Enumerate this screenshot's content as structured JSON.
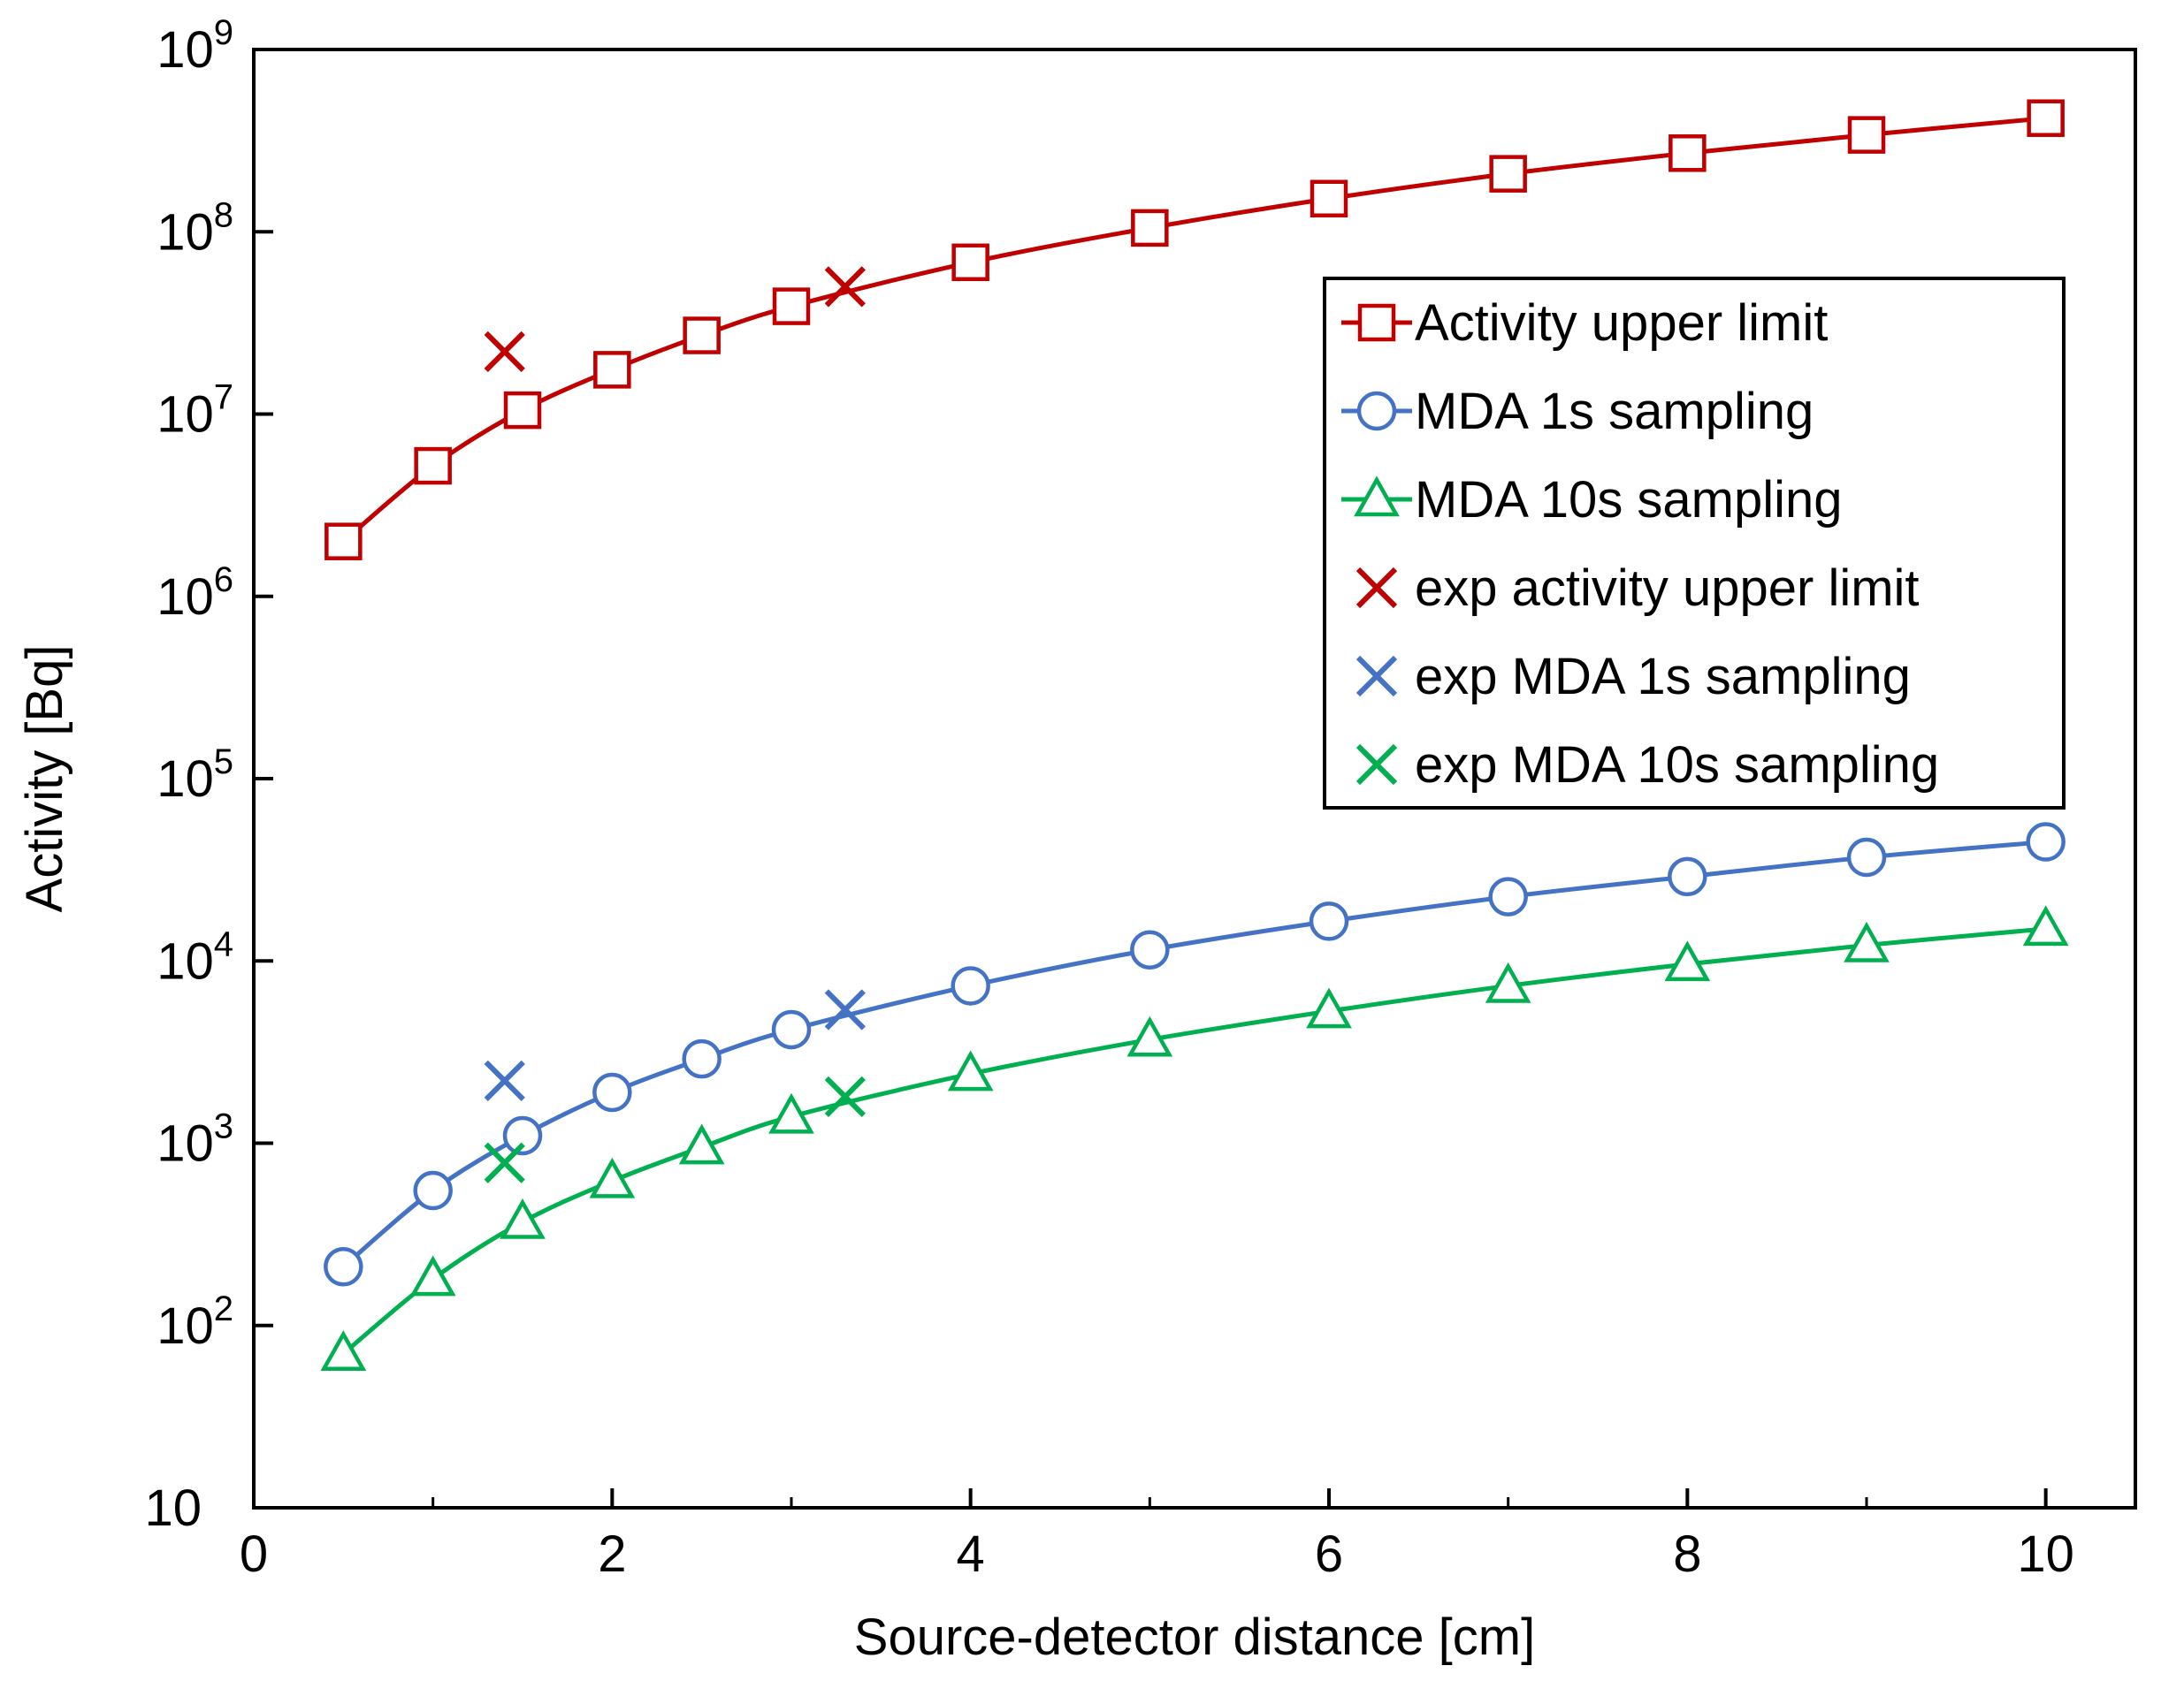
{
  "chart_data": {
    "type": "line",
    "title": "",
    "xlabel": "Source-detector distance [cm]",
    "ylabel": "Activity [Bq]",
    "xlim": [
      0,
      10.5
    ],
    "ylim": [
      10,
      1000000000
    ],
    "yscale": "log",
    "x_ticks": [
      0,
      2,
      4,
      6,
      8,
      10
    ],
    "x_tick_labels": [
      "0",
      "2",
      "4",
      "6",
      "8",
      "10"
    ],
    "y_ticks": [
      {
        "base": "10",
        "exp": "",
        "value": 10
      },
      {
        "base": "10",
        "exp": "2",
        "value": 100
      },
      {
        "base": "10",
        "exp": "3",
        "value": 1000
      },
      {
        "base": "10",
        "exp": "4",
        "value": 10000
      },
      {
        "base": "10",
        "exp": "5",
        "value": 100000
      },
      {
        "base": "10",
        "exp": "6",
        "value": 1000000
      },
      {
        "base": "10",
        "exp": "7",
        "value": 10000000
      },
      {
        "base": "10",
        "exp": "8",
        "value": 100000000
      },
      {
        "base": "10",
        "exp": "9",
        "value": 1000000000
      }
    ],
    "legend_position": "upper-right",
    "series": [
      {
        "name": "Activity upper limit",
        "kind": "line",
        "marker": "square",
        "color": "#C00000",
        "x": [
          0.5,
          1,
          1.5,
          2,
          2.5,
          3,
          4,
          5,
          6,
          7,
          8,
          9,
          10
        ],
        "y": [
          2000000,
          5200000,
          10500000,
          17500000,
          27000000,
          39000000,
          68000000,
          105000000,
          152000000,
          208000000,
          270000000,
          340000000,
          420000000
        ]
      },
      {
        "name": "MDA 1s sampling",
        "kind": "line",
        "marker": "circle",
        "color": "#4472C4",
        "x": [
          0.5,
          1,
          1.5,
          2,
          2.5,
          3,
          4,
          5,
          6,
          7,
          8,
          9,
          10
        ],
        "y": [
          210,
          550,
          1100,
          1900,
          2900,
          4200,
          7300,
          11500,
          16500,
          22500,
          29000,
          37000,
          45000
        ]
      },
      {
        "name": "MDA 10s sampling",
        "kind": "line",
        "marker": "triangle",
        "color": "#00B050",
        "x": [
          0.5,
          1,
          1.5,
          2,
          2.5,
          3,
          4,
          5,
          6,
          7,
          8,
          9,
          10
        ],
        "y": [
          70,
          180,
          370,
          620,
          950,
          1400,
          2400,
          3700,
          5300,
          7300,
          9600,
          12200,
          15000
        ]
      },
      {
        "name": "exp activity upper limit",
        "kind": "scatter",
        "marker": "x",
        "color": "#C00000",
        "x": [
          1.4,
          3.3
        ],
        "y": [
          22000000,
          50000000
        ]
      },
      {
        "name": "exp MDA 1s sampling",
        "kind": "scatter",
        "marker": "x",
        "color": "#4472C4",
        "x": [
          1.4,
          3.3
        ],
        "y": [
          2200,
          5400
        ]
      },
      {
        "name": "exp MDA 10s sampling",
        "kind": "scatter",
        "marker": "x",
        "color": "#00B050",
        "x": [
          1.4,
          3.3
        ],
        "y": [
          780,
          1800
        ]
      }
    ]
  }
}
